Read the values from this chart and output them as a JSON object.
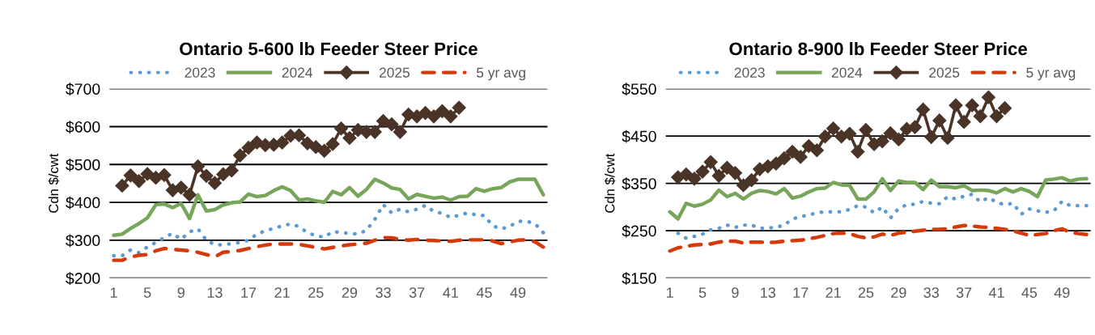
{
  "chart_data": [
    {
      "type": "line",
      "title": "Ontario 5-600 lb Feeder Steer Price",
      "ylabel": "Cdn $/cwt",
      "x": [
        1,
        2,
        3,
        4,
        5,
        6,
        7,
        8,
        9,
        10,
        11,
        12,
        13,
        14,
        15,
        16,
        17,
        18,
        19,
        20,
        21,
        22,
        23,
        24,
        25,
        26,
        27,
        28,
        29,
        30,
        31,
        32,
        33,
        34,
        35,
        36,
        37,
        38,
        39,
        40,
        41,
        42,
        43,
        44,
        45,
        46,
        47,
        48,
        49,
        50,
        51,
        52
      ],
      "xlim": [
        0.5,
        52.5
      ],
      "xticks": [
        1,
        5,
        9,
        13,
        17,
        21,
        25,
        29,
        33,
        37,
        41,
        45,
        49
      ],
      "ylim": [
        200,
        700
      ],
      "yticks": [
        {
          "value": 200,
          "label": "$200"
        },
        {
          "value": 300,
          "label": "$300"
        },
        {
          "value": 400,
          "label": "$400"
        },
        {
          "value": 500,
          "label": "$500"
        },
        {
          "value": 600,
          "label": "$600"
        },
        {
          "value": 700,
          "label": "$700"
        }
      ],
      "grid": "y",
      "legend": "top",
      "series": [
        {
          "name": "2023",
          "color": "#5b9bd5",
          "line_style": "dotted",
          "marker": "none",
          "values": [
            259,
            259,
            274,
            267,
            282,
            294,
            307,
            318,
            302,
            322,
            330,
            300,
            288,
            288,
            291,
            294,
            300,
            316,
            325,
            331,
            338,
            343,
            336,
            320,
            312,
            308,
            323,
            320,
            318,
            316,
            326,
            355,
            394,
            372,
            382,
            375,
            382,
            392,
            376,
            371,
            360,
            366,
            372,
            367,
            365,
            338,
            330,
            336,
            350,
            350,
            344,
            320
          ]
        },
        {
          "name": "2024",
          "color": "#77a55a",
          "line_style": "solid",
          "marker": "none",
          "values": [
            313,
            316,
            331,
            344,
            359,
            394,
            396,
            386,
            397,
            357,
            420,
            377,
            381,
            393,
            399,
            401,
            422,
            415,
            418,
            431,
            441,
            431,
            406,
            409,
            404,
            400,
            429,
            420,
            439,
            416,
            434,
            461,
            451,
            438,
            434,
            409,
            421,
            416,
            411,
            414,
            406,
            415,
            416,
            436,
            429,
            436,
            439,
            454,
            461,
            461,
            461,
            420
          ]
        },
        {
          "name": "2025",
          "color": "#4a3428",
          "line_style": "solid",
          "marker": "diamond",
          "values": [
            null,
            444,
            471,
            456,
            475,
            465,
            472,
            432,
            439,
            420,
            495,
            470,
            451,
            474,
            484,
            524,
            544,
            558,
            551,
            552,
            558,
            576,
            577,
            556,
            546,
            536,
            554,
            595,
            570,
            591,
            586,
            586,
            615,
            606,
            586,
            632,
            627,
            636,
            627,
            641,
            627,
            650,
            null,
            null,
            null,
            null,
            null,
            null,
            null,
            null,
            null,
            null
          ]
        },
        {
          "name": "5 yr avg",
          "color": "#d53a0b",
          "line_style": "dashed",
          "marker": "none",
          "values": [
            247,
            247,
            256,
            260,
            262,
            272,
            278,
            276,
            274,
            272,
            268,
            262,
            256,
            268,
            270,
            273,
            278,
            283,
            287,
            290,
            290,
            290,
            289,
            285,
            281,
            277,
            281,
            285,
            288,
            290,
            292,
            300,
            307,
            306,
            303,
            300,
            302,
            300,
            299,
            298,
            297,
            300,
            301,
            301,
            301,
            298,
            291,
            295,
            300,
            301,
            296,
            282
          ]
        }
      ]
    },
    {
      "type": "line",
      "title": "Ontario 8-900 lb Feeder Steer Price",
      "ylabel": "Cdn $/cwt",
      "x": [
        1,
        2,
        3,
        4,
        5,
        6,
        7,
        8,
        9,
        10,
        11,
        12,
        13,
        14,
        15,
        16,
        17,
        18,
        19,
        20,
        21,
        22,
        23,
        24,
        25,
        26,
        27,
        28,
        29,
        30,
        31,
        32,
        33,
        34,
        35,
        36,
        37,
        38,
        39,
        40,
        41,
        42,
        43,
        44,
        45,
        46,
        47,
        48,
        49,
        50,
        51,
        52
      ],
      "xlim": [
        0.5,
        52.5
      ],
      "xticks": [
        1,
        5,
        9,
        13,
        17,
        21,
        25,
        29,
        33,
        37,
        41,
        45,
        49
      ],
      "ylim": [
        150,
        550
      ],
      "yticks": [
        {
          "value": 150,
          "label": "$150"
        },
        {
          "value": 250,
          "label": "$250"
        },
        {
          "value": 350,
          "label": "$350"
        },
        {
          "value": 450,
          "label": "$450"
        },
        {
          "value": 550,
          "label": "$550"
        }
      ],
      "grid": "y",
      "legend": "top",
      "series": [
        {
          "name": "2023",
          "color": "#5b9bd5",
          "line_style": "dotted",
          "marker": "none",
          "values": [
            null,
            245,
            234,
            238,
            243,
            252,
            255,
            262,
            257,
            262,
            262,
            255,
            256,
            257,
            262,
            275,
            280,
            283,
            288,
            290,
            290,
            290,
            295,
            303,
            300,
            288,
            300,
            277,
            297,
            305,
            306,
            312,
            308,
            307,
            322,
            317,
            323,
            327,
            311,
            320,
            310,
            305,
            308,
            285,
            296,
            292,
            289,
            292,
            312,
            303,
            303,
            303
          ]
        },
        {
          "name": "2024",
          "color": "#77a55a",
          "line_style": "solid",
          "marker": "none",
          "values": [
            290,
            275,
            308,
            302,
            306,
            315,
            336,
            322,
            329,
            317,
            329,
            335,
            333,
            328,
            339,
            319,
            323,
            332,
            339,
            340,
            352,
            347,
            346,
            317,
            317,
            332,
            360,
            335,
            355,
            352,
            352,
            337,
            357,
            343,
            343,
            341,
            345,
            335,
            336,
            335,
            330,
            339,
            332,
            339,
            333,
            322,
            357,
            359,
            362,
            355,
            359,
            360
          ]
        },
        {
          "name": "2025",
          "color": "#4a3428",
          "line_style": "solid",
          "marker": "diamond",
          "values": [
            null,
            363,
            369,
            360,
            375,
            395,
            366,
            383,
            372,
            346,
            357,
            380,
            386,
            392,
            403,
            417,
            406,
            429,
            420,
            449,
            466,
            449,
            455,
            417,
            463,
            433,
            439,
            456,
            443,
            465,
            469,
            506,
            448,
            483,
            446,
            515,
            480,
            515,
            492,
            532,
            492,
            509,
            null,
            null,
            null,
            null,
            null,
            null,
            null,
            null,
            null,
            null
          ]
        },
        {
          "name": "5 yr avg",
          "color": "#d53a0b",
          "line_style": "dashed",
          "marker": "none",
          "values": [
            207,
            214,
            217,
            220,
            221,
            222,
            226,
            228,
            228,
            224,
            226,
            226,
            225,
            226,
            228,
            229,
            230,
            233,
            236,
            240,
            244,
            245,
            244,
            238,
            235,
            237,
            243,
            240,
            245,
            247,
            249,
            251,
            253,
            253,
            254,
            258,
            261,
            260,
            258,
            257,
            255,
            253,
            250,
            245,
            240,
            242,
            244,
            250,
            254,
            247,
            244,
            242
          ]
        }
      ]
    }
  ]
}
